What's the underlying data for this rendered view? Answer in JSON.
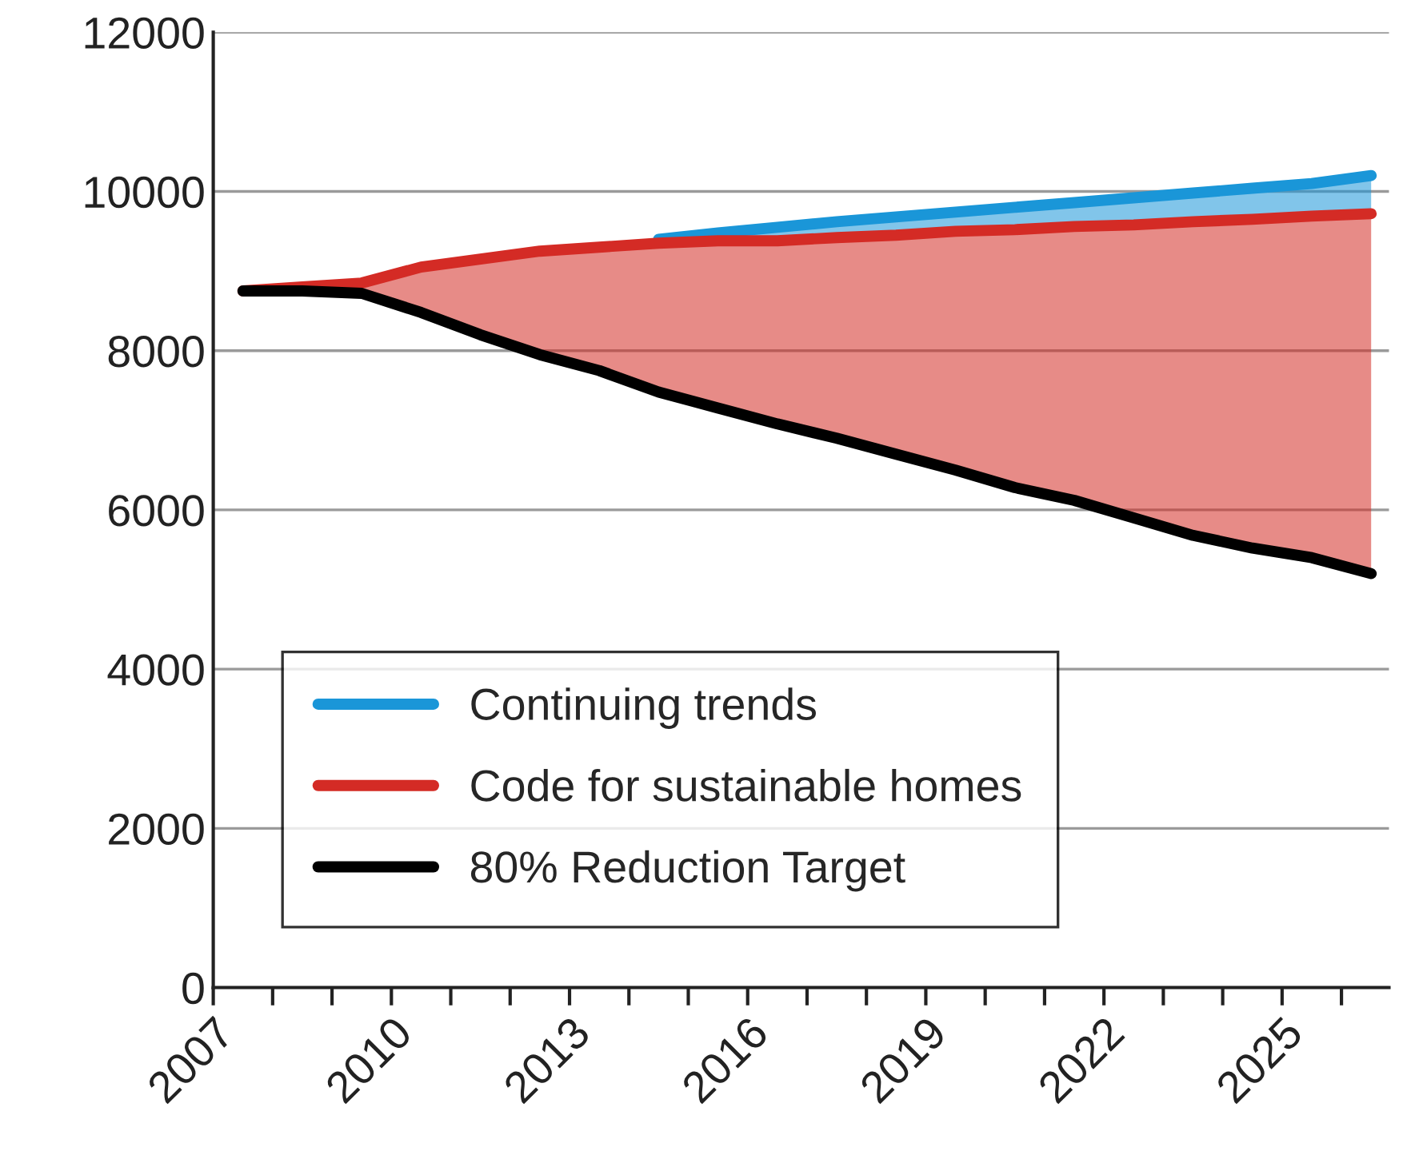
{
  "chart_data": {
    "type": "line",
    "x": [
      2007.5,
      2008.5,
      2009.5,
      2010.5,
      2011.5,
      2012.5,
      2013.5,
      2014.5,
      2015.5,
      2016.5,
      2017.5,
      2018.5,
      2019.5,
      2020.5,
      2021.5,
      2022.5,
      2023.5,
      2024.5,
      2025.5,
      2026.5
    ],
    "series": [
      {
        "name": "Continuing trends",
        "color": "#1a96d8",
        "values": [
          null,
          null,
          null,
          null,
          null,
          null,
          null,
          9400,
          9480,
          9550,
          9620,
          9680,
          9740,
          9800,
          9860,
          9920,
          9980,
          10040,
          10100,
          10200
        ],
        "lower": [
          8750,
          8800,
          8850,
          9050,
          9150,
          9250,
          9300,
          9350,
          9380,
          9380,
          9420,
          9450,
          9500,
          9520,
          9560,
          9580,
          9620,
          9650,
          9690,
          9720
        ],
        "upper": [
          8750,
          8800,
          8900,
          9050,
          9150,
          9250,
          9330,
          9400,
          9480,
          9550,
          9620,
          9680,
          9740,
          9800,
          9860,
          9920,
          9980,
          10040,
          10100,
          10200
        ]
      },
      {
        "name": "Code for sustainable homes",
        "color": "#d42b25",
        "values": [
          8750,
          8800,
          8850,
          9050,
          9150,
          9250,
          9300,
          9350,
          9380,
          9380,
          9420,
          9450,
          9500,
          9520,
          9560,
          9580,
          9620,
          9650,
          9690,
          9720
        ],
        "lower": [
          8750,
          8750,
          8720,
          8480,
          8200,
          7950,
          7750,
          7480,
          7280,
          7080,
          6900,
          6700,
          6500,
          6280,
          6120,
          5900,
          5680,
          5520,
          5400,
          5200
        ],
        "upper": [
          8750,
          8800,
          8850,
          9050,
          9150,
          9250,
          9300,
          9350,
          9380,
          9380,
          9420,
          9450,
          9500,
          9520,
          9560,
          9580,
          9620,
          9650,
          9690,
          9720
        ]
      },
      {
        "name": "80% Reduction Target",
        "color": "#000000",
        "values": [
          8750,
          8750,
          8720,
          8480,
          8200,
          7950,
          7750,
          7480,
          7280,
          7080,
          6900,
          6700,
          6500,
          6280,
          6120,
          5900,
          5680,
          5520,
          5400,
          5200
        ]
      }
    ],
    "xlim": [
      2007,
      2026.8
    ],
    "xticks": [
      2007,
      {
        "value": 2008,
        "label": null
      },
      {
        "value": 2009,
        "label": null
      },
      2010,
      {
        "value": 2011,
        "label": null
      },
      {
        "value": 2012,
        "label": null
      },
      2013,
      {
        "value": 2014,
        "label": null
      },
      {
        "value": 2015,
        "label": null
      },
      2016,
      {
        "value": 2017,
        "label": null
      },
      {
        "value": 2018,
        "label": null
      },
      2019,
      {
        "value": 2020,
        "label": null
      },
      {
        "value": 2021,
        "label": null
      },
      2022,
      {
        "value": 2023,
        "label": null
      },
      {
        "value": 2024,
        "label": null
      },
      2025,
      {
        "value": 2026,
        "label": null
      }
    ],
    "ylim": [
      0,
      12000
    ],
    "yticks": [
      0,
      2000,
      4000,
      6000,
      8000,
      10000,
      12000
    ],
    "grid": "y",
    "legend": "bottom left",
    "line_style": "solid",
    "marker": "none"
  }
}
